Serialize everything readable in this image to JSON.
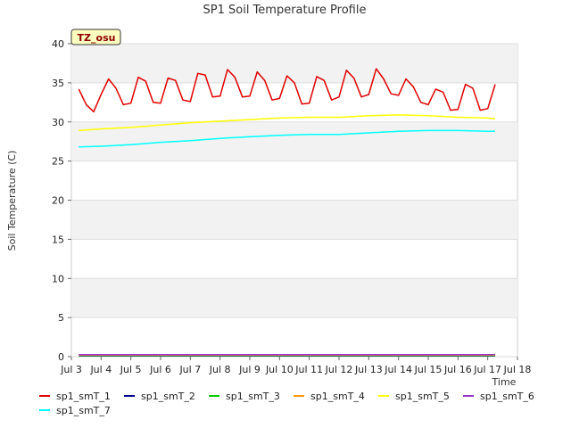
{
  "chart_data": {
    "type": "line",
    "title": "SP1 Soil Temperature Profile",
    "xlabel": "Time",
    "ylabel": "Soil Temperature (C)",
    "badge": "TZ_osu",
    "xlim": [
      3,
      18
    ],
    "ylim": [
      0,
      40
    ],
    "x_ticks": [
      {
        "value": 3,
        "label": "Jul 3"
      },
      {
        "value": 4,
        "label": "Jul 4"
      },
      {
        "value": 5,
        "label": "Jul 5"
      },
      {
        "value": 6,
        "label": "Jul 6"
      },
      {
        "value": 7,
        "label": "Jul 7"
      },
      {
        "value": 8,
        "label": "Jul 8"
      },
      {
        "value": 9,
        "label": "Jul 9"
      },
      {
        "value": 10,
        "label": "Jul 10"
      },
      {
        "value": 11,
        "label": "Jul 11"
      },
      {
        "value": 12,
        "label": "Jul 12"
      },
      {
        "value": 13,
        "label": "Jul 13"
      },
      {
        "value": 14,
        "label": "Jul 14"
      },
      {
        "value": 15,
        "label": "Jul 15"
      },
      {
        "value": 16,
        "label": "Jul 16"
      },
      {
        "value": 17,
        "label": "Jul 17"
      },
      {
        "value": 18,
        "label": "Jul 18"
      }
    ],
    "y_ticks": [
      0,
      5,
      10,
      15,
      20,
      25,
      30,
      35,
      40
    ],
    "grid": true,
    "legend_position": "bottom",
    "series": [
      {
        "name": "sp1_smT_1",
        "color": "#e00000",
        "x": [
          3.25,
          3.5,
          3.75,
          4.0,
          4.25,
          4.5,
          4.75,
          5.0,
          5.25,
          5.5,
          5.75,
          6.0,
          6.25,
          6.5,
          6.75,
          7.0,
          7.25,
          7.5,
          7.75,
          8.0,
          8.25,
          8.5,
          8.75,
          9.0,
          9.25,
          9.5,
          9.75,
          10.0,
          10.25,
          10.5,
          10.75,
          11.0,
          11.25,
          11.5,
          11.75,
          12.0,
          12.25,
          12.5,
          12.75,
          13.0,
          13.25,
          13.5,
          13.75,
          14.0,
          14.25,
          14.5,
          14.75,
          15.0,
          15.25,
          15.5,
          15.75,
          16.0,
          16.25,
          16.5,
          16.75,
          17.0,
          17.25
        ],
        "y": [
          34.2,
          32.2,
          31.3,
          33.5,
          35.5,
          34.3,
          32.2,
          32.4,
          35.7,
          35.2,
          32.5,
          32.4,
          35.6,
          35.3,
          32.8,
          32.6,
          36.2,
          36.0,
          33.2,
          33.3,
          36.7,
          35.7,
          33.2,
          33.3,
          36.4,
          35.3,
          32.8,
          33.0,
          35.9,
          35.0,
          32.3,
          32.4,
          35.8,
          35.3,
          32.8,
          33.2,
          36.6,
          35.6,
          33.2,
          33.5,
          36.8,
          35.5,
          33.6,
          33.4,
          35.5,
          34.5,
          32.5,
          32.2,
          34.2,
          33.8,
          31.5,
          31.6,
          34.8,
          34.3,
          31.5,
          31.7,
          34.8
        ]
      },
      {
        "name": "sp1_smT_2",
        "color": "#00008b",
        "x": [
          3.25,
          17.25
        ],
        "y": [
          0.1,
          0.1
        ]
      },
      {
        "name": "sp1_smT_3",
        "color": "#00cc00",
        "x": [
          3.25,
          17.25
        ],
        "y": [
          0.15,
          0.15
        ]
      },
      {
        "name": "sp1_smT_4",
        "color": "#ff9900",
        "x": [
          3.25,
          17.25
        ],
        "y": [
          0.2,
          0.2
        ]
      },
      {
        "name": "sp1_smT_5",
        "color": "#ffff00",
        "x": [
          3.25,
          4.0,
          5.0,
          6.0,
          7.0,
          8.0,
          9.0,
          10.0,
          11.0,
          12.0,
          13.0,
          14.0,
          15.0,
          16.0,
          17.0,
          17.25
        ],
        "y": [
          28.9,
          29.1,
          29.3,
          29.6,
          29.9,
          30.1,
          30.3,
          30.5,
          30.6,
          30.6,
          30.8,
          30.9,
          30.8,
          30.6,
          30.5,
          30.4
        ]
      },
      {
        "name": "sp1_smT_6",
        "color": "#9933cc",
        "x": [
          3.25,
          17.25
        ],
        "y": [
          0.25,
          0.25
        ]
      },
      {
        "name": "sp1_smT_7",
        "color": "#00ffff",
        "x": [
          3.25,
          4.0,
          5.0,
          6.0,
          7.0,
          8.0,
          9.0,
          10.0,
          11.0,
          12.0,
          13.0,
          14.0,
          15.0,
          16.0,
          17.0,
          17.25
        ],
        "y": [
          26.8,
          26.9,
          27.1,
          27.4,
          27.6,
          27.9,
          28.1,
          28.3,
          28.4,
          28.4,
          28.6,
          28.8,
          28.9,
          28.9,
          28.8,
          28.8
        ]
      }
    ]
  }
}
